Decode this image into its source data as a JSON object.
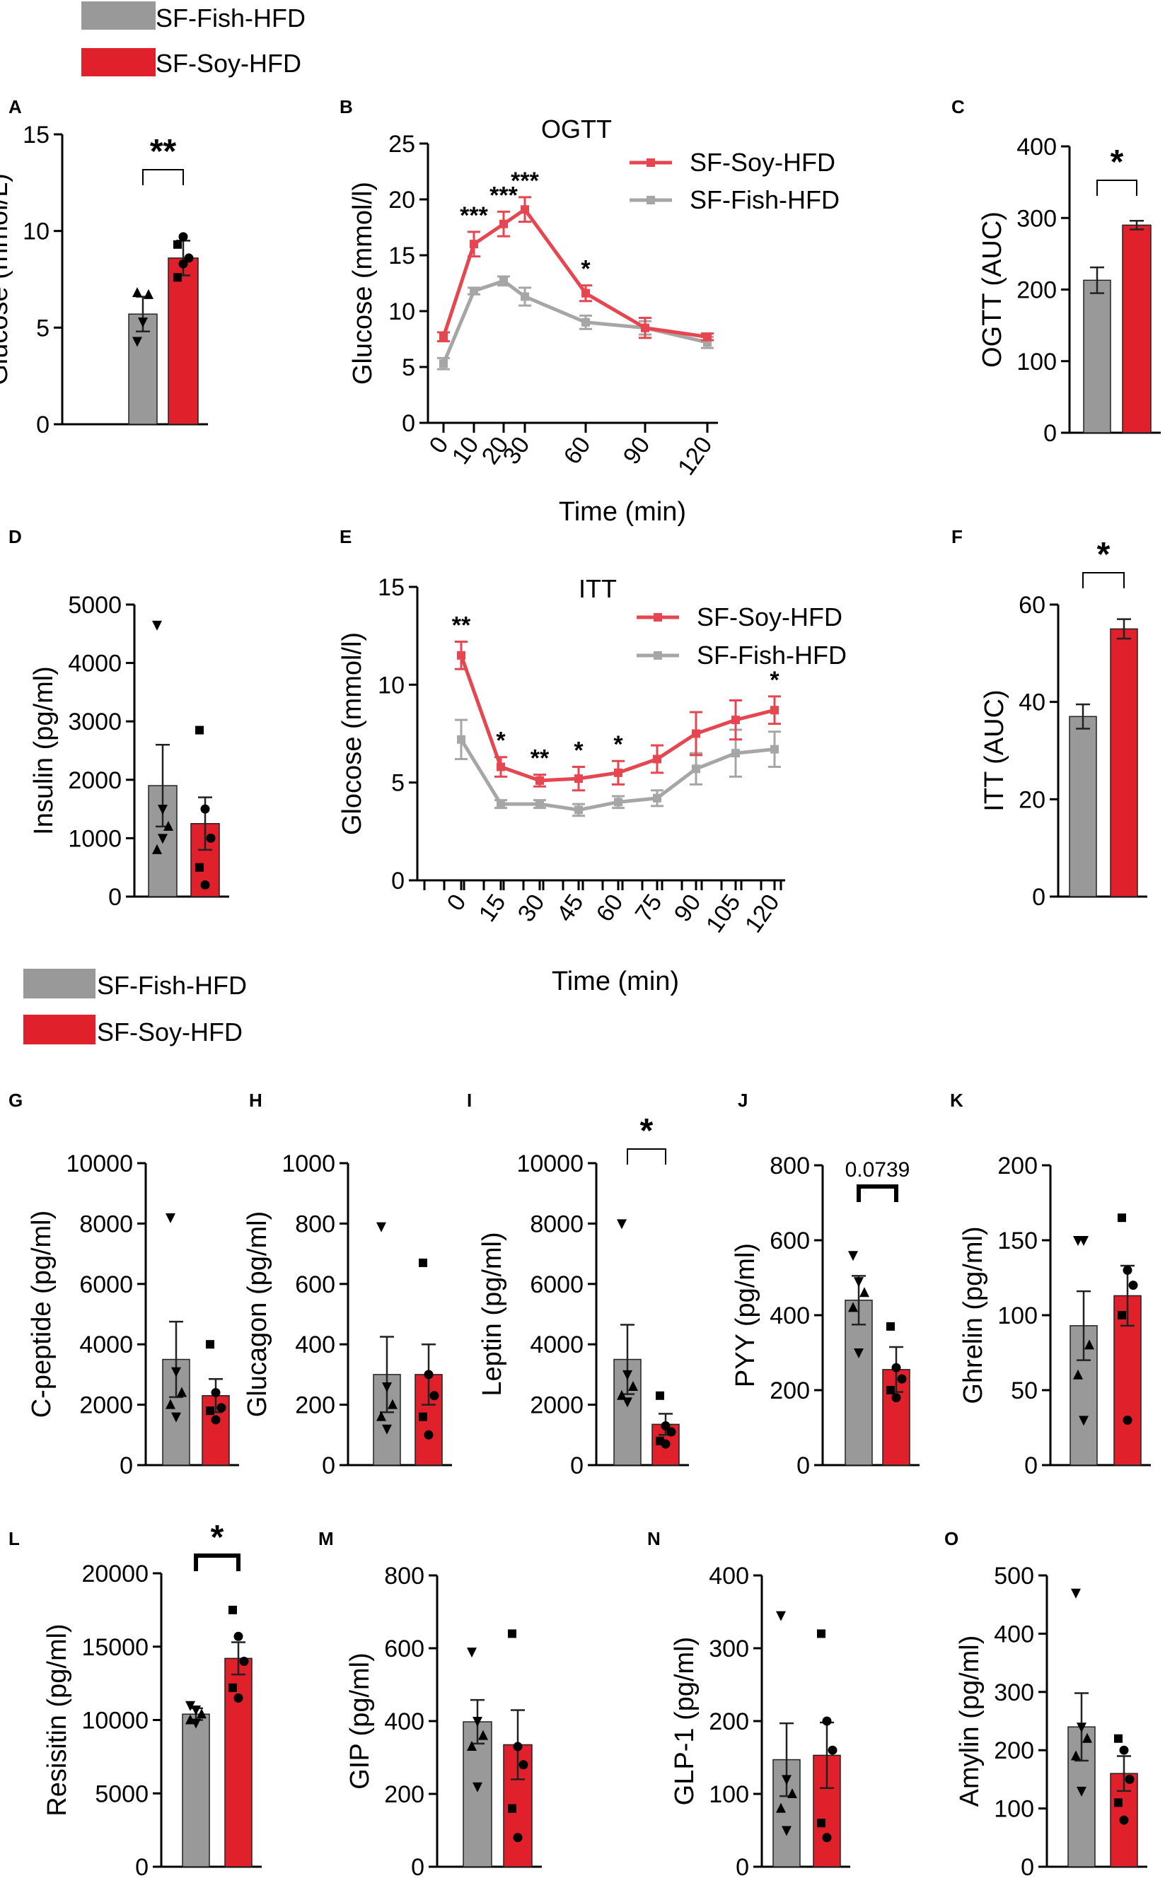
{
  "colors": {
    "fish": "#999999",
    "soy": "#e0202a",
    "fish_line": "#a6a6a6",
    "soy_line": "#e64650"
  },
  "legend_top": {
    "items": [
      "SF-Fish-HFD",
      "SF-Soy-HFD"
    ]
  },
  "legend_mid": {
    "items": [
      "SF-Fish-HFD",
      "SF-Soy-HFD"
    ]
  },
  "chart_data": [
    {
      "id": "A",
      "type": "bar",
      "title": "",
      "ylabel": "Glucose (mmol/L)",
      "ylim": [
        0,
        15
      ],
      "yticks": [
        0,
        5,
        10,
        15
      ],
      "categories": [
        "SF-Fish-HFD",
        "SF-Soy-HFD"
      ],
      "values": [
        5.7,
        8.6
      ],
      "errors": [
        0.9,
        0.9
      ],
      "points": [
        [
          4.3,
          5.3,
          6.7,
          6.8
        ],
        [
          7.6,
          8.3,
          8.6,
          9.3,
          9.7
        ]
      ],
      "significance": "**"
    },
    {
      "id": "B",
      "type": "line",
      "title": "OGTT",
      "xlabel": "Time (min)",
      "ylabel": "Glucose (mmol/l)",
      "x": [
        0,
        10,
        20,
        30,
        60,
        90,
        120
      ],
      "ylim": [
        0,
        25
      ],
      "yticks": [
        0,
        5,
        10,
        15,
        20,
        25
      ],
      "series": [
        {
          "name": "SF-Soy-HFD",
          "values": [
            7.7,
            16.0,
            17.8,
            19.1,
            11.6,
            8.5,
            7.7
          ],
          "errors": [
            0.4,
            1.1,
            1.1,
            1.1,
            0.7,
            0.9,
            0.3
          ]
        },
        {
          "name": "SF-Fish-HFD",
          "values": [
            5.3,
            11.8,
            12.7,
            11.3,
            9.0,
            8.5,
            7.2
          ],
          "errors": [
            0.5,
            0.3,
            0.4,
            0.8,
            0.6,
            0.6,
            0.5
          ]
        }
      ],
      "annotations": [
        {
          "x": 10,
          "label": "***"
        },
        {
          "x": 20,
          "label": "***"
        },
        {
          "x": 30,
          "label": "***"
        },
        {
          "x": 60,
          "label": "*"
        }
      ]
    },
    {
      "id": "C",
      "type": "bar",
      "ylabel": "OGTT (AUC)",
      "ylim": [
        0,
        400
      ],
      "yticks": [
        0,
        100,
        200,
        300,
        400
      ],
      "categories": [
        "SF-Fish-HFD",
        "SF-Soy-HFD"
      ],
      "values": [
        213,
        290
      ],
      "errors": [
        18,
        6
      ],
      "significance": "*"
    },
    {
      "id": "D",
      "type": "bar",
      "ylabel": "Insulin (pg/ml)",
      "ylim": [
        0,
        5000
      ],
      "yticks": [
        0,
        1000,
        2000,
        3000,
        4000,
        5000
      ],
      "categories": [
        "SF-Fish-HFD",
        "SF-Soy-HFD"
      ],
      "values": [
        1900,
        1250
      ],
      "errors": [
        700,
        450
      ],
      "points": [
        [
          4650,
          1500,
          1200,
          800,
          1000
        ],
        [
          2850,
          1500,
          1000,
          500,
          200
        ]
      ]
    },
    {
      "id": "E",
      "type": "line",
      "title": "ITT",
      "xlabel": "Time (min)",
      "ylabel": "Glocose (mmol/l)",
      "x": [
        0,
        15,
        30,
        45,
        60,
        75,
        90,
        105,
        120
      ],
      "ylim": [
        0,
        15
      ],
      "yticks": [
        0,
        5,
        10,
        15
      ],
      "series": [
        {
          "name": "SF-Soy-HFD",
          "values": [
            11.5,
            5.8,
            5.1,
            5.2,
            5.5,
            6.2,
            7.5,
            8.2,
            8.7
          ],
          "errors": [
            0.7,
            0.5,
            0.3,
            0.6,
            0.6,
            0.7,
            1.1,
            1.0,
            0.7
          ]
        },
        {
          "name": "SF-Fish-HFD",
          "values": [
            7.2,
            3.9,
            3.9,
            3.6,
            4.0,
            4.2,
            5.7,
            6.5,
            6.7
          ],
          "errors": [
            1.0,
            0.2,
            0.2,
            0.3,
            0.3,
            0.4,
            0.8,
            1.2,
            0.9
          ]
        }
      ],
      "annotations": [
        {
          "x": 0,
          "label": "**"
        },
        {
          "x": 15,
          "label": "*"
        },
        {
          "x": 30,
          "label": "**"
        },
        {
          "x": 45,
          "label": "*"
        },
        {
          "x": 60,
          "label": "*"
        },
        {
          "x": 120,
          "label": "*"
        }
      ]
    },
    {
      "id": "F",
      "type": "bar",
      "ylabel": "ITT (AUC)",
      "ylim": [
        0,
        60
      ],
      "yticks": [
        0,
        20,
        40,
        60
      ],
      "categories": [
        "SF-Fish-HFD",
        "SF-Soy-HFD"
      ],
      "values": [
        37,
        55
      ],
      "errors": [
        2.5,
        2
      ],
      "significance": "*"
    },
    {
      "id": "G",
      "type": "bar",
      "ylabel": "C-peptide (pg/ml)",
      "ylim": [
        0,
        10000
      ],
      "yticks": [
        0,
        2000,
        4000,
        6000,
        8000,
        10000
      ],
      "categories": [
        "SF-Fish-HFD",
        "SF-Soy-HFD"
      ],
      "values": [
        3500,
        2300
      ],
      "errors": [
        1250,
        550
      ],
      "points": [
        [
          8200,
          3100,
          2400,
          2000,
          1600
        ],
        [
          4000,
          2400,
          1900,
          1800,
          1500
        ]
      ]
    },
    {
      "id": "H",
      "type": "bar",
      "ylabel": "Glucagon (pg/ml)",
      "ylim": [
        0,
        1000
      ],
      "yticks": [
        0,
        200,
        400,
        600,
        800,
        1000
      ],
      "categories": [
        "SF-Fish-HFD",
        "SF-Soy-HFD"
      ],
      "values": [
        300,
        300
      ],
      "errors": [
        125,
        100
      ],
      "points": [
        [
          790,
          260,
          200,
          160,
          120
        ],
        [
          670,
          300,
          230,
          160,
          100
        ]
      ]
    },
    {
      "id": "I",
      "type": "bar",
      "ylabel": "Leptin (pg/ml)",
      "ylim": [
        0,
        10000
      ],
      "yticks": [
        0,
        2000,
        4000,
        6000,
        8000,
        10000
      ],
      "categories": [
        "SF-Fish-HFD",
        "SF-Soy-HFD"
      ],
      "values": [
        3500,
        1350
      ],
      "errors": [
        1150,
        350
      ],
      "points": [
        [
          8000,
          3000,
          2600,
          2300,
          2100
        ],
        [
          2300,
          1300,
          1100,
          800,
          700
        ]
      ],
      "significance": "*"
    },
    {
      "id": "J",
      "type": "bar",
      "ylabel": "PYY (pg/ml)",
      "ylim": [
        0,
        800
      ],
      "yticks": [
        0,
        200,
        400,
        600,
        800
      ],
      "categories": [
        "SF-Fish-HFD",
        "SF-Soy-HFD"
      ],
      "values": [
        440,
        255
      ],
      "errors": [
        65,
        60
      ],
      "points": [
        [
          560,
          490,
          460,
          420,
          300
        ],
        [
          370,
          260,
          230,
          200,
          180
        ]
      ],
      "significance": "0.0739"
    },
    {
      "id": "K",
      "type": "bar",
      "ylabel": "Ghrelin (pg/ml)",
      "ylim": [
        0,
        200
      ],
      "yticks": [
        0,
        50,
        100,
        150,
        200
      ],
      "categories": [
        "SF-Fish-HFD",
        "SF-Soy-HFD"
      ],
      "values": [
        93,
        113
      ],
      "errors": [
        23,
        20
      ],
      "points": [
        [
          150,
          150,
          80,
          60,
          30
        ],
        [
          165,
          130,
          120,
          100,
          30
        ]
      ]
    },
    {
      "id": "L",
      "type": "bar",
      "ylabel": "Resisitin (pg/ml)",
      "ylim": [
        0,
        20000
      ],
      "yticks": [
        0,
        5000,
        10000,
        15000,
        20000
      ],
      "categories": [
        "SF-Fish-HFD",
        "SF-Soy-HFD"
      ],
      "values": [
        10400,
        14200
      ],
      "errors": [
        400,
        1100
      ],
      "points": [
        [
          11000,
          10700,
          10400,
          10000,
          9800
        ],
        [
          17500,
          15700,
          14000,
          12200,
          11500
        ]
      ],
      "significance": "*"
    },
    {
      "id": "M",
      "type": "bar",
      "ylabel": "GIP (pg/ml)",
      "ylim": [
        0,
        800
      ],
      "yticks": [
        0,
        200,
        400,
        600,
        800
      ],
      "categories": [
        "SF-Fish-HFD",
        "SF-Soy-HFD"
      ],
      "values": [
        398,
        335
      ],
      "errors": [
        60,
        95
      ],
      "points": [
        [
          590,
          400,
          360,
          330,
          220
        ],
        [
          640,
          330,
          280,
          160,
          80
        ]
      ]
    },
    {
      "id": "N",
      "type": "bar",
      "ylabel": "GLP-1 (pg/ml)",
      "ylim": [
        0,
        400
      ],
      "yticks": [
        0,
        100,
        200,
        300,
        400
      ],
      "categories": [
        "SF-Fish-HFD",
        "SF-Soy-HFD"
      ],
      "values": [
        147,
        153
      ],
      "errors": [
        50,
        45
      ],
      "points": [
        [
          345,
          120,
          100,
          80,
          50
        ],
        [
          320,
          200,
          160,
          60,
          40
        ]
      ]
    },
    {
      "id": "O",
      "type": "bar",
      "ylabel": "Amylin (pg/ml)",
      "ylim": [
        0,
        500
      ],
      "yticks": [
        0,
        100,
        200,
        300,
        400,
        500
      ],
      "categories": [
        "SF-Fish-HFD",
        "SF-Soy-HFD"
      ],
      "values": [
        240,
        160
      ],
      "errors": [
        58,
        30
      ],
      "points": [
        [
          470,
          240,
          220,
          190,
          130
        ],
        [
          220,
          200,
          150,
          110,
          80
        ]
      ]
    }
  ]
}
